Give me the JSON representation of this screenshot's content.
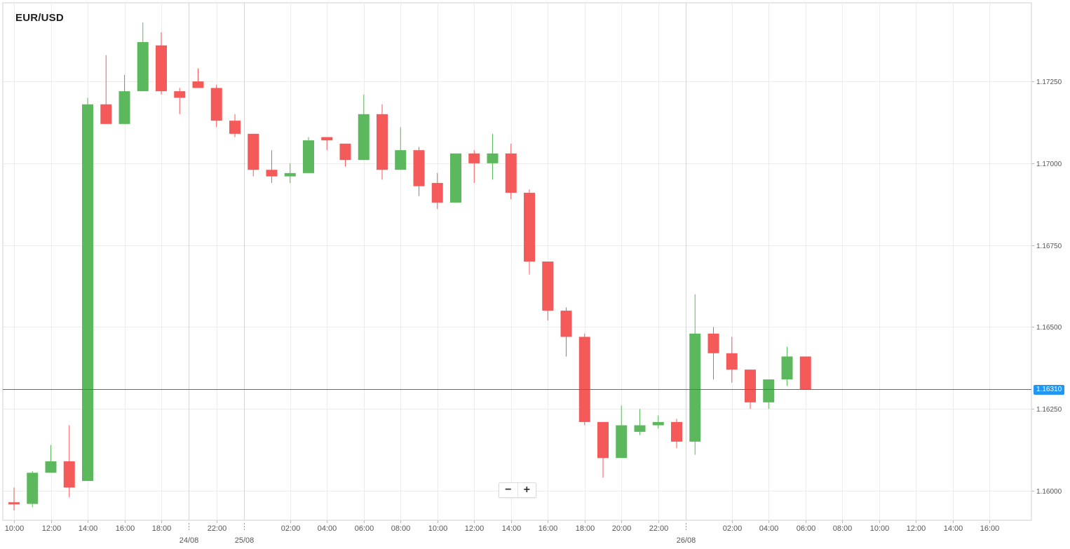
{
  "chart_title": "EUR/USD",
  "zoom": {
    "minus_label": "−",
    "plus_label": "+"
  },
  "current_price_label": "1.16310",
  "colors": {
    "up": "#5cb85c",
    "down": "#f55a5a",
    "grid": "#ececec",
    "separator": "#d6d6d6",
    "price_line": "#1a8a9e",
    "price_tag": "#2196f3",
    "axis_text": "#555555"
  },
  "chart_data": {
    "type": "candlestick",
    "title": "EUR/USD",
    "ylim": [
      1.1591,
      1.1749
    ],
    "y_ticks": [
      1.16,
      1.1625,
      1.165,
      1.1675,
      1.17,
      1.1725
    ],
    "y_tick_labels": [
      "1.16000",
      "1.16250",
      "1.16500",
      "1.16750",
      "1.17000",
      "1.17250"
    ],
    "current_price": 1.1631,
    "x_tick_labels": [
      "10:00",
      "12:00",
      "14:00",
      "16:00",
      "18:00",
      "22:00",
      "02:00",
      "04:00",
      "06:00",
      "08:00",
      "10:00",
      "12:00",
      "14:00",
      "16:00",
      "18:00",
      "20:00",
      "22:00",
      "02:00",
      "04:00",
      "06:00",
      "08:00",
      "10:00",
      "12:00",
      "14:00",
      "16:00"
    ],
    "x_tick_slots": [
      0,
      2,
      4,
      6,
      8,
      11,
      15,
      17,
      19,
      21,
      23,
      25,
      27,
      29,
      31,
      33,
      35,
      39,
      41,
      43,
      45,
      47,
      49,
      51,
      53
    ],
    "date_labels": [
      "24/08",
      "25/08",
      "26/08"
    ],
    "date_slots": [
      9.5,
      12.5,
      36.5
    ],
    "grid": true,
    "candles": [
      {
        "slot": 0,
        "o": 1.15965,
        "h": 1.1601,
        "l": 1.1594,
        "c": 1.1596
      },
      {
        "slot": 1,
        "o": 1.1596,
        "h": 1.1606,
        "l": 1.1595,
        "c": 1.16055
      },
      {
        "slot": 2,
        "o": 1.16055,
        "h": 1.1614,
        "l": 1.16055,
        "c": 1.1609
      },
      {
        "slot": 3,
        "o": 1.1609,
        "h": 1.162,
        "l": 1.1598,
        "c": 1.1601
      },
      {
        "slot": 4,
        "o": 1.1603,
        "h": 1.172,
        "l": 1.1603,
        "c": 1.1718
      },
      {
        "slot": 5,
        "o": 1.1718,
        "h": 1.1733,
        "l": 1.1712,
        "c": 1.1712
      },
      {
        "slot": 6,
        "o": 1.1712,
        "h": 1.1727,
        "l": 1.1712,
        "c": 1.1722
      },
      {
        "slot": 7,
        "o": 1.1722,
        "h": 1.1743,
        "l": 1.1722,
        "c": 1.1737
      },
      {
        "slot": 8,
        "o": 1.1736,
        "h": 1.174,
        "l": 1.1721,
        "c": 1.1722
      },
      {
        "slot": 9,
        "o": 1.1722,
        "h": 1.1723,
        "l": 1.1715,
        "c": 1.172
      },
      {
        "slot": 10,
        "o": 1.1725,
        "h": 1.1729,
        "l": 1.1723,
        "c": 1.1723
      },
      {
        "slot": 11,
        "o": 1.1723,
        "h": 1.1724,
        "l": 1.1711,
        "c": 1.1713
      },
      {
        "slot": 12,
        "o": 1.1713,
        "h": 1.1715,
        "l": 1.1708,
        "c": 1.1709
      },
      {
        "slot": 13,
        "o": 1.1709,
        "h": 1.1709,
        "l": 1.1696,
        "c": 1.1698
      },
      {
        "slot": 14,
        "o": 1.1698,
        "h": 1.1704,
        "l": 1.1694,
        "c": 1.1696
      },
      {
        "slot": 15,
        "o": 1.1696,
        "h": 1.17,
        "l": 1.1694,
        "c": 1.1697
      },
      {
        "slot": 16,
        "o": 1.1697,
        "h": 1.1708,
        "l": 1.1697,
        "c": 1.1707
      },
      {
        "slot": 17,
        "o": 1.1708,
        "h": 1.1708,
        "l": 1.1704,
        "c": 1.1707
      },
      {
        "slot": 18,
        "o": 1.1706,
        "h": 1.1706,
        "l": 1.1699,
        "c": 1.1701
      },
      {
        "slot": 19,
        "o": 1.1701,
        "h": 1.1721,
        "l": 1.1701,
        "c": 1.1715
      },
      {
        "slot": 20,
        "o": 1.1715,
        "h": 1.1718,
        "l": 1.1695,
        "c": 1.1698
      },
      {
        "slot": 21,
        "o": 1.1698,
        "h": 1.1711,
        "l": 1.1698,
        "c": 1.1704
      },
      {
        "slot": 22,
        "o": 1.1704,
        "h": 1.1705,
        "l": 1.169,
        "c": 1.1693
      },
      {
        "slot": 23,
        "o": 1.1694,
        "h": 1.1697,
        "l": 1.1686,
        "c": 1.1688
      },
      {
        "slot": 24,
        "o": 1.1688,
        "h": 1.1703,
        "l": 1.1688,
        "c": 1.1703
      },
      {
        "slot": 25,
        "o": 1.1703,
        "h": 1.1704,
        "l": 1.1694,
        "c": 1.17
      },
      {
        "slot": 26,
        "o": 1.17,
        "h": 1.1709,
        "l": 1.1695,
        "c": 1.1703
      },
      {
        "slot": 27,
        "o": 1.1703,
        "h": 1.1706,
        "l": 1.1689,
        "c": 1.1691
      },
      {
        "slot": 28,
        "o": 1.1691,
        "h": 1.1692,
        "l": 1.1666,
        "c": 1.167
      },
      {
        "slot": 29,
        "o": 1.167,
        "h": 1.167,
        "l": 1.1652,
        "c": 1.1655
      },
      {
        "slot": 30,
        "o": 1.1655,
        "h": 1.1656,
        "l": 1.1641,
        "c": 1.1647
      },
      {
        "slot": 31,
        "o": 1.1647,
        "h": 1.1648,
        "l": 1.162,
        "c": 1.1621
      },
      {
        "slot": 32,
        "o": 1.1621,
        "h": 1.1621,
        "l": 1.1604,
        "c": 1.161
      },
      {
        "slot": 33,
        "o": 1.161,
        "h": 1.1626,
        "l": 1.161,
        "c": 1.162
      },
      {
        "slot": 34,
        "o": 1.1618,
        "h": 1.1625,
        "l": 1.1617,
        "c": 1.162
      },
      {
        "slot": 35,
        "o": 1.162,
        "h": 1.1623,
        "l": 1.1619,
        "c": 1.1621
      },
      {
        "slot": 36,
        "o": 1.1621,
        "h": 1.1622,
        "l": 1.1613,
        "c": 1.1615
      },
      {
        "slot": 37,
        "o": 1.1615,
        "h": 1.166,
        "l": 1.1611,
        "c": 1.1648
      },
      {
        "slot": 38,
        "o": 1.1648,
        "h": 1.165,
        "l": 1.1634,
        "c": 1.1642
      },
      {
        "slot": 39,
        "o": 1.1642,
        "h": 1.1647,
        "l": 1.1633,
        "c": 1.1637
      },
      {
        "slot": 40,
        "o": 1.1637,
        "h": 1.1637,
        "l": 1.1625,
        "c": 1.1627
      },
      {
        "slot": 41,
        "o": 1.1627,
        "h": 1.1634,
        "l": 1.1625,
        "c": 1.1634
      },
      {
        "slot": 42,
        "o": 1.1634,
        "h": 1.1644,
        "l": 1.1632,
        "c": 1.1641
      },
      {
        "slot": 43,
        "o": 1.1641,
        "h": 1.1641,
        "l": 1.1631,
        "c": 1.1631
      }
    ]
  }
}
